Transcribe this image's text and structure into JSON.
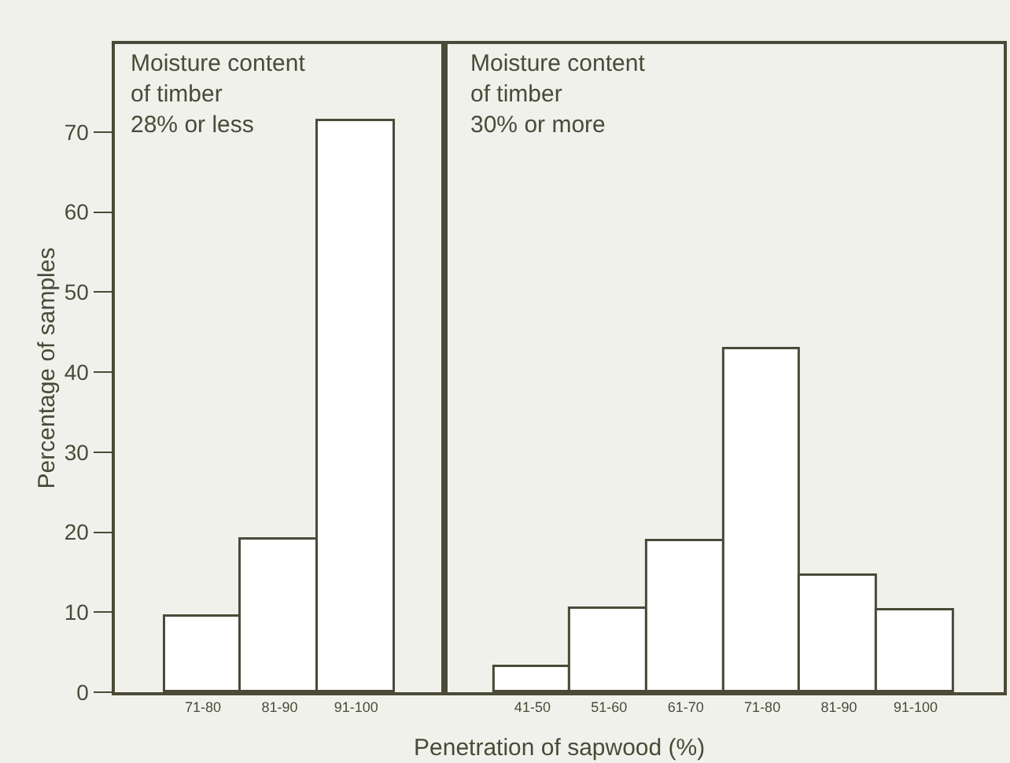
{
  "chart_data": [
    {
      "type": "bar",
      "xlabel": "Penetration of sapwood (%)",
      "ylabel": "Percentage of samples",
      "categories": [
        "71-80",
        "81-90",
        "91-100"
      ],
      "series": [
        {
          "color": "#ffffff",
          "values": [
            9.5,
            19.0,
            71.3
          ]
        }
      ],
      "ylim": [
        0,
        81
      ],
      "yticks": [
        0,
        10,
        20,
        30,
        40,
        50,
        60,
        70
      ],
      "grid": false,
      "annotations": [
        "Moisture content\nof timber\n28% or less"
      ]
    },
    {
      "type": "bar",
      "categories": [
        "41-50",
        "51-60",
        "61-70",
        "71-80",
        "81-90",
        "91-100"
      ],
      "series": [
        {
          "color": "#ffffff",
          "values": [
            3.1,
            10.4,
            18.8,
            42.8,
            14.6,
            10.3
          ]
        }
      ],
      "ylim": [
        0,
        81
      ],
      "yticks": [
        0,
        10,
        20,
        30,
        40,
        50,
        60,
        70
      ],
      "grid": false,
      "tick_labels": "x",
      "annotations": [
        "Moisture content\nof timber\n30% or more"
      ]
    }
  ]
}
